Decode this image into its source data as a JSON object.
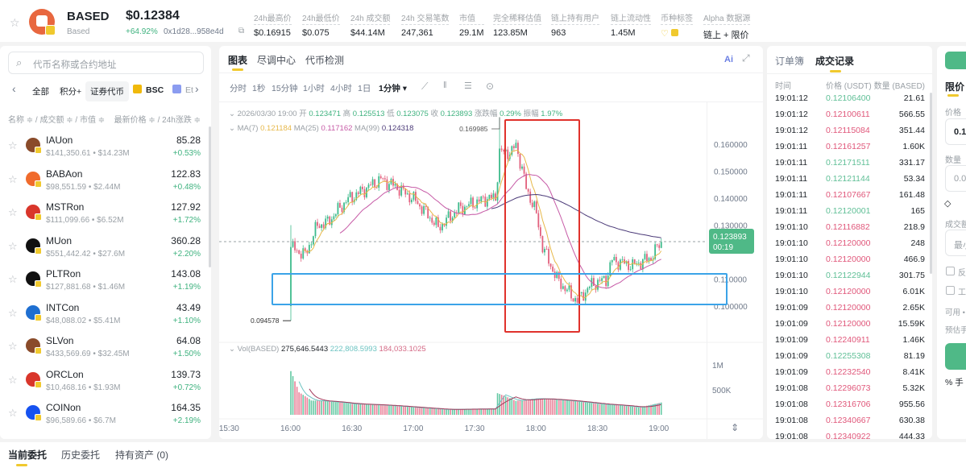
{
  "header": {
    "token_symbol": "BASED",
    "token_name": "Based",
    "price": "$0.12384",
    "change": "+64.92%",
    "contract": "0x1d28...958e4d",
    "stats": [
      {
        "label": "24h最高价",
        "value": "$0.16915"
      },
      {
        "label": "24h最低价",
        "value": "$0.075"
      },
      {
        "label": "24h 成交额",
        "value": "$44.14M"
      },
      {
        "label": "24h 交易笔数",
        "value": "247,361"
      },
      {
        "label": "市值",
        "value": "29.1M"
      },
      {
        "label": "完全稀释估值",
        "value": "123.85M"
      },
      {
        "label": "链上持有用户",
        "value": "963"
      },
      {
        "label": "链上流动性",
        "value": "1.45M"
      },
      {
        "label": "币种标签",
        "value": ""
      },
      {
        "label": "Alpha 数据源",
        "value": "链上 + 限价"
      }
    ]
  },
  "sidebar": {
    "search_placeholder": "代币名称或合约地址",
    "filters": [
      "全部",
      "积分+",
      "证券代币",
      "BSC",
      "Et"
    ],
    "active_filter": "证券代币",
    "col_left": "名称 ≑ / 成交额 ≑ / 市值 ≑",
    "col_right": "最新价格 ≑ / 24h涨跌 ≑",
    "items": [
      {
        "name": "IAUon",
        "sub": "$141,350.61 • $14.23M",
        "price": "85.28",
        "change": "+0.53%",
        "color": "#8a4b2a"
      },
      {
        "name": "BABAon",
        "sub": "$98,551.59 • $2.44M",
        "price": "122.83",
        "change": "+0.48%",
        "color": "#f06b2c"
      },
      {
        "name": "MSTRon",
        "sub": "$111,099.66 • $6.52M",
        "price": "127.92",
        "change": "+1.72%",
        "color": "#d9362b"
      },
      {
        "name": "MUon",
        "sub": "$551,442.42 • $27.6M",
        "price": "360.28",
        "change": "+2.20%",
        "color": "#111111"
      },
      {
        "name": "PLTRon",
        "sub": "$127,881.68 • $1.46M",
        "price": "143.08",
        "change": "+1.19%",
        "color": "#111111"
      },
      {
        "name": "INTCon",
        "sub": "$48,088.02 • $5.41M",
        "price": "43.49",
        "change": "+1.10%",
        "color": "#1f6fd1"
      },
      {
        "name": "SLVon",
        "sub": "$433,569.69 • $32.45M",
        "price": "64.08",
        "change": "+1.50%",
        "color": "#8a4b2a"
      },
      {
        "name": "ORCLon",
        "sub": "$10,468.16 • $1.93M",
        "price": "139.73",
        "change": "+0.72%",
        "color": "#d9362b"
      },
      {
        "name": "COINon",
        "sub": "$96,589.66 • $6.7M",
        "price": "164.35",
        "change": "+2.19%",
        "color": "#1652f0"
      }
    ]
  },
  "chart_panel": {
    "tabs": [
      "图表",
      "尽调中心",
      "代币检测"
    ],
    "active_tab": "图表",
    "ai_label": "Ai",
    "intervals": [
      "分时",
      "1秒",
      "15分钟",
      "1小时",
      "4小时",
      "1日",
      "1分钟 ▾"
    ],
    "active_interval": "1分钟 ▾"
  },
  "chart_data": {
    "type": "candlestick",
    "ohlc_info": {
      "date": "2026/03/30 19:00",
      "open_label": "开",
      "open": "0.123471",
      "high_label": "高",
      "high": "0.125513",
      "low_label": "低",
      "low": "0.123075",
      "close_label": "收",
      "close": "0.123893",
      "change_label": "涨跌幅",
      "change": "0.29%",
      "amp_label": "振幅",
      "amp": "1.97%"
    },
    "ma": [
      {
        "name": "MA(7)",
        "value": "0.121184",
        "color": "#e7b84a"
      },
      {
        "name": "MA(25)",
        "value": "0.117162",
        "color": "#c65aa6"
      },
      {
        "name": "MA(99)",
        "value": "0.124318",
        "color": "#4b3a78"
      }
    ],
    "y_ticks": [
      "0.160000",
      "0.150000",
      "0.140000",
      "0.130000",
      "0.110000",
      "0.100000"
    ],
    "x_ticks": [
      "15:30",
      "16:00",
      "16:30",
      "17:00",
      "17:30",
      "18:00",
      "18:30",
      "19:00"
    ],
    "ylim": [
      0.09,
      0.175
    ],
    "price_path": [
      [
        "16:00",
        0.1219
      ],
      [
        "16:07",
        0.1189
      ],
      [
        "16:13",
        0.13
      ],
      [
        "16:18",
        0.131
      ],
      [
        "16:27",
        0.139
      ],
      [
        "16:44",
        0.147
      ],
      [
        "16:52",
        0.144
      ],
      [
        "17:01",
        0.139
      ],
      [
        "17:09",
        0.132
      ],
      [
        "17:12",
        0.129
      ],
      [
        "17:22",
        0.136
      ],
      [
        "17:36",
        0.14
      ],
      [
        "17:40",
        0.14
      ],
      [
        "17:42",
        0.157
      ],
      [
        "17:48",
        0.157
      ],
      [
        "17:50",
        0.16
      ],
      [
        "17:55",
        0.144
      ],
      [
        "18:00",
        0.134
      ],
      [
        "18:03",
        0.122
      ],
      [
        "18:10",
        0.11
      ],
      [
        "18:17",
        0.104
      ],
      [
        "18:20",
        0.102
      ],
      [
        "18:27",
        0.108
      ],
      [
        "18:34",
        0.11
      ],
      [
        "18:37",
        0.117
      ],
      [
        "18:47",
        0.115
      ],
      [
        "18:56",
        0.118
      ],
      [
        "19:01",
        0.1239
      ]
    ],
    "high_label": "0.169985",
    "low_label": "0.094578",
    "current_price": "0.123893",
    "countdown": "00:19",
    "volume": {
      "label": "Vol(BASED)",
      "values_text": [
        "275,646.5443",
        "222,808.5993",
        "184,033.1025"
      ],
      "y_ticks": [
        "1M",
        "500K"
      ],
      "path": [
        [
          "16:00",
          1250000
        ],
        [
          "16:04",
          600000
        ],
        [
          "16:10",
          350000
        ],
        [
          "16:30",
          220000
        ],
        [
          "17:00",
          170000
        ],
        [
          "17:40",
          120000
        ],
        [
          "17:41",
          450000
        ],
        [
          "17:50",
          280000
        ],
        [
          "18:00",
          330000
        ],
        [
          "18:30",
          310000
        ],
        [
          "18:50",
          160000
        ],
        [
          "19:01",
          250000
        ]
      ]
    },
    "colors": {
      "up": "#3dbb8c",
      "down": "#e2607d"
    }
  },
  "trades": {
    "tabs": [
      "订单簿",
      "成交记录"
    ],
    "active_tab": "成交记录",
    "headers": [
      "时间",
      "价格 (USDT)",
      "数量 (BASED)"
    ],
    "rows": [
      [
        "19:01:12",
        "0.12106400",
        "21.61",
        "up"
      ],
      [
        "19:01:12",
        "0.12100611",
        "566.55",
        "down"
      ],
      [
        "19:01:12",
        "0.12115084",
        "351.44",
        "down"
      ],
      [
        "19:01:11",
        "0.12161257",
        "1.60K",
        "down"
      ],
      [
        "19:01:11",
        "0.12171511",
        "331.17",
        "up"
      ],
      [
        "19:01:11",
        "0.12121144",
        "53.34",
        "up"
      ],
      [
        "19:01:11",
        "0.12107667",
        "161.48",
        "down"
      ],
      [
        "19:01:11",
        "0.12120001",
        "165",
        "up"
      ],
      [
        "19:01:10",
        "0.12116882",
        "218.9",
        "down"
      ],
      [
        "19:01:10",
        "0.12120000",
        "248",
        "down"
      ],
      [
        "19:01:10",
        "0.12120000",
        "466.9",
        "down"
      ],
      [
        "19:01:10",
        "0.12122944",
        "301.75",
        "up"
      ],
      [
        "19:01:10",
        "0.12120000",
        "6.01K",
        "down"
      ],
      [
        "19:01:09",
        "0.12120000",
        "2.65K",
        "down"
      ],
      [
        "19:01:09",
        "0.12120000",
        "15.59K",
        "down"
      ],
      [
        "19:01:09",
        "0.12240911",
        "1.46K",
        "down"
      ],
      [
        "19:01:09",
        "0.12255308",
        "81.19",
        "up"
      ],
      [
        "19:01:09",
        "0.12232540",
        "8.41K",
        "down"
      ],
      [
        "19:01:08",
        "0.12296073",
        "5.32K",
        "down"
      ],
      [
        "19:01:08",
        "0.12316706",
        "955.56",
        "down"
      ],
      [
        "19:01:08",
        "0.12340667",
        "630.38",
        "down"
      ],
      [
        "19:01:08",
        "0.12340922",
        "444.33",
        "down"
      ]
    ]
  },
  "order": {
    "type": "限价",
    "price_label": "价格",
    "price_value": "0.1",
    "qty_label": "数量",
    "qty_placeholder": "0.0",
    "amount_label": "成交额",
    "amount_placeholder": "最小",
    "check1": "反",
    "check2": "工",
    "available": "可用 •",
    "fee": "预估手",
    "fee_link": "% 手"
  },
  "bottom_tabs": [
    "当前委托",
    "历史委托",
    "持有资产 (0)"
  ]
}
